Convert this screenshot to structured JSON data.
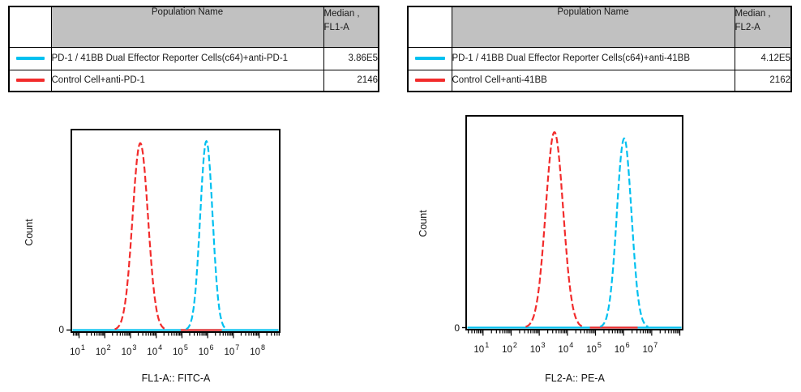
{
  "colors": {
    "reporter_cyan": "#00c0f0",
    "control_red": "#f22b2b",
    "table_header_bg": "#c1c1c1",
    "axis_black": "#111111"
  },
  "panels": [
    {
      "table": {
        "population_header": "Population Name",
        "median_header_line1": "Median ,",
        "median_header_line2": "FL1-A",
        "rows": [
          {
            "color": "#00c0f0",
            "name": "PD-1 / 41BB Dual Effector Reporter Cells(c64)+anti-PD-1",
            "median": "3.86E5"
          },
          {
            "color": "#f22b2b",
            "name": "Control Cell+anti-PD-1",
            "median": "2146"
          }
        ]
      }
    },
    {
      "table": {
        "population_header": "Population Name",
        "median_header_line1": "Median ,",
        "median_header_line2": "FL2-A",
        "rows": [
          {
            "color": "#00c0f0",
            "name": "PD-1 / 41BB Dual Effector Reporter Cells(c64)+anti-41BB",
            "median": "4.12E5"
          },
          {
            "color": "#f22b2b",
            "name": "Control Cell+anti-41BB",
            "median": "2162"
          }
        ]
      }
    }
  ],
  "chart_data": [
    {
      "type": "line",
      "subtype": "flow-cytometry-histogram",
      "title": "",
      "xlabel": "FL1-A:: FITC-A",
      "ylabel": "Count",
      "x_scale": "log10",
      "xlim_log10": [
        0.7,
        8.8
      ],
      "x_tick_exponents": [
        1,
        2,
        3,
        4,
        5,
        6,
        7,
        8
      ],
      "y_zero_label": "0",
      "grid": false,
      "legend": "in table above",
      "series": [
        {
          "name": "Control Cell+anti-PD-1",
          "color": "#f22b2b",
          "median_value": "2146",
          "peak_center_log10": 3.38,
          "peak_sigma_log10": 0.3,
          "peak_height_frac": 0.94
        },
        {
          "name": "PD-1 / 41BB Dual Effector Reporter Cells(c64)+anti-PD-1",
          "color": "#00c0f0",
          "median_value": "3.86E5",
          "peak_center_log10": 5.95,
          "peak_sigma_log10": 0.24,
          "peak_height_frac": 0.95
        }
      ],
      "baseline": {
        "full_width_color": "#00c0f0",
        "overlay_color": "#f22b2b",
        "overlay_range_log10": [
          4.95,
          6.55
        ]
      }
    },
    {
      "type": "line",
      "subtype": "flow-cytometry-histogram",
      "title": "",
      "xlabel": "FL2-A:: PE-A",
      "ylabel": "Count",
      "x_scale": "log10",
      "xlim_log10": [
        0.4,
        8.1
      ],
      "x_tick_exponents": [
        1,
        2,
        3,
        4,
        5,
        6,
        7
      ],
      "y_zero_label": "0",
      "grid": false,
      "legend": "in table above",
      "series": [
        {
          "name": "Control Cell+anti-41BB",
          "color": "#f22b2b",
          "median_value": "2162",
          "peak_center_log10": 3.54,
          "peak_sigma_log10": 0.31,
          "peak_height_frac": 0.93
        },
        {
          "name": "PD-1 / 41BB Dual Effector Reporter Cells(c64)+anti-41BB",
          "color": "#00c0f0",
          "median_value": "4.12E5",
          "peak_center_log10": 6.02,
          "peak_sigma_log10": 0.26,
          "peak_height_frac": 0.9
        }
      ],
      "baseline": {
        "full_width_color": "#00c0f0",
        "overlay_color": "#f22b2b",
        "overlay_range_log10": [
          4.8,
          6.5
        ]
      }
    }
  ]
}
